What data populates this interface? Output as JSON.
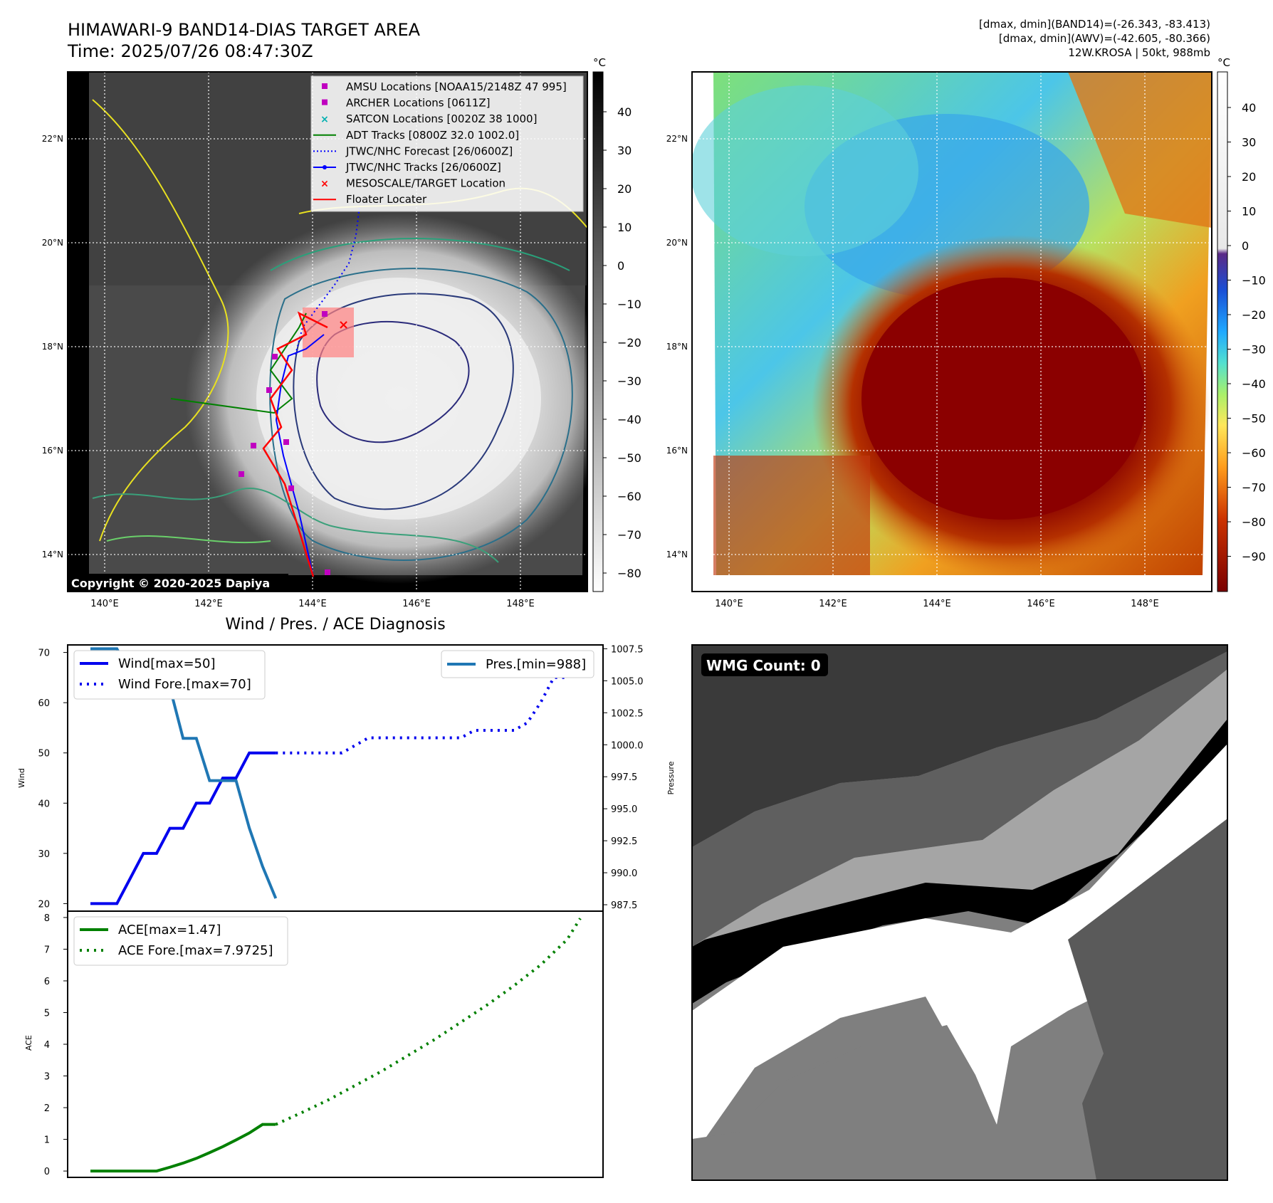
{
  "header": {
    "title": "HIMAWARI-9 BAND14-DIAS TARGET AREA",
    "time": "Time: 2025/07/26 08:47:30Z",
    "stats_band14": "[dmax, dmin](BAND14)=(-26.343, -83.413)",
    "stats_awv": "[dmax, dmin](AWV)=(-42.605, -80.366)",
    "storm_info": "12W.KROSA | 50kt, 988mb"
  },
  "map_left": {
    "lon_labels": [
      "140°E",
      "142°E",
      "144°E",
      "146°E",
      "148°E"
    ],
    "lat_labels": [
      "22°N",
      "20°N",
      "18°N",
      "16°N",
      "14°N"
    ],
    "colorbar_unit": "°C",
    "colorbar_ticks": [
      "40",
      "30",
      "20",
      "10",
      "0",
      "−10",
      "−20",
      "−30",
      "−40",
      "−50",
      "−60",
      "−70",
      "−80"
    ],
    "copyright": "Copyright © 2020-2025 Dapiya",
    "legend": [
      {
        "label": "AMSU Locations [NOAA15/2148Z 47 995]",
        "marker": "square",
        "color": "#c000c0"
      },
      {
        "label": "ARCHER Locations [0611Z]",
        "marker": "square",
        "color": "#c000c0"
      },
      {
        "label": "SATCON Locations [0020Z 38 1000]",
        "marker": "x",
        "color": "#00b0b0"
      },
      {
        "label": "ADT Tracks [0800Z 32.0 1002.0]",
        "marker": "line",
        "color": "#008000"
      },
      {
        "label": "JTWC/NHC Forecast [26/0600Z]",
        "marker": "dotted",
        "color": "#0000ff"
      },
      {
        "label": "JTWC/NHC Tracks [26/0600Z]",
        "marker": "line-dot",
        "color": "#0000ff"
      },
      {
        "label": "MESOSCALE/TARGET Location",
        "marker": "x",
        "color": "#ff0000"
      },
      {
        "label": "Floater Locater",
        "marker": "line",
        "color": "#ff0000"
      }
    ]
  },
  "map_right": {
    "lon_labels": [
      "140°E",
      "142°E",
      "144°E",
      "146°E",
      "148°E"
    ],
    "lat_labels": [
      "22°N",
      "20°N",
      "18°N",
      "16°N",
      "14°N"
    ],
    "colorbar_unit": "°C",
    "colorbar_ticks": [
      "40",
      "30",
      "20",
      "10",
      "0",
      "−10",
      "−20",
      "−30",
      "−40",
      "−50",
      "−60",
      "−70",
      "−80",
      "−90"
    ]
  },
  "wmg": {
    "label": "WMG Count: 0"
  },
  "colors": {
    "wind": "#0000ee",
    "pressure": "#1f77b4",
    "ace": "#008000"
  },
  "chart_data": [
    {
      "type": "line",
      "title": "Wind / Pres. / ACE Diagnosis",
      "ylabel": "Wind",
      "ylabel_right": "Pressure",
      "ylim": [
        18.5,
        71.5
      ],
      "ylim_right": [
        987.0,
        1007.8
      ],
      "yticks": [
        20,
        30,
        40,
        50,
        60,
        70
      ],
      "yticks_right": [
        "987.5",
        "990.0",
        "992.5",
        "995.0",
        "997.5",
        "1000.0",
        "1002.5",
        "1005.0",
        "1007.5"
      ],
      "x": [
        0,
        1,
        2,
        3,
        4,
        5,
        6,
        7,
        8,
        9,
        10,
        11,
        12,
        13,
        14,
        15,
        16,
        17,
        18,
        19,
        20,
        21,
        22,
        23,
        24,
        25,
        26,
        27,
        28,
        29,
        30,
        31,
        32,
        33,
        34,
        35,
        36,
        37
      ],
      "series": [
        {
          "name": "Wind[max=50]",
          "style": "solid",
          "x": [
            0,
            1,
            2,
            3,
            4,
            5,
            6,
            7,
            8,
            9,
            10,
            11,
            12,
            13,
            14
          ],
          "values": [
            20,
            20,
            20,
            25,
            30,
            30,
            35,
            35,
            40,
            40,
            45,
            45,
            50,
            50,
            50
          ]
        },
        {
          "name": "Wind Fore.[max=70]",
          "style": "dotted",
          "x": [
            14,
            15,
            16,
            17,
            18,
            19,
            20,
            21,
            22,
            23,
            24,
            25,
            26,
            27,
            28,
            29,
            30,
            31,
            32,
            33,
            34,
            35,
            36,
            37
          ],
          "values": [
            50,
            50,
            50,
            50,
            50,
            50,
            51.5,
            53,
            53,
            53,
            53,
            53,
            53,
            53,
            53,
            54.5,
            54.5,
            54.5,
            54.5,
            56,
            60,
            65,
            65,
            67
          ]
        },
        {
          "name": "Pres.[min=988]",
          "style": "solid",
          "axis": "right",
          "x": [
            0,
            1,
            2,
            3,
            4,
            5,
            6,
            7,
            8,
            9,
            10,
            11,
            12,
            13,
            14
          ],
          "values": [
            1007.5,
            1007.5,
            1007.5,
            1005.5,
            1005.5,
            1004.5,
            1004.5,
            1000.5,
            1000.5,
            997.2,
            997.2,
            997.2,
            993.5,
            990.5,
            988.0
          ]
        }
      ]
    },
    {
      "type": "line",
      "ylabel": "ACE",
      "ylim": [
        -0.2,
        8.2
      ],
      "yticks": [
        0,
        1,
        2,
        3,
        4,
        5,
        6,
        7,
        8
      ],
      "series": [
        {
          "name": "ACE[max=1.47]",
          "style": "solid",
          "x": [
            0,
            1,
            2,
            3,
            4,
            5,
            6,
            7,
            8,
            9,
            10,
            11,
            12,
            13,
            14
          ],
          "values": [
            0,
            0,
            0,
            0,
            0,
            0,
            0.12,
            0.25,
            0.4,
            0.58,
            0.77,
            0.98,
            1.2,
            1.47,
            1.47
          ]
        },
        {
          "name": "ACE Fore.[max=7.9725]",
          "style": "dotted",
          "x": [
            14,
            16,
            18,
            20,
            22,
            24,
            26,
            28,
            30,
            32,
            34,
            36,
            37
          ],
          "values": [
            1.47,
            1.85,
            2.25,
            2.7,
            3.15,
            3.65,
            4.15,
            4.7,
            5.25,
            5.85,
            6.5,
            7.3,
            7.97
          ]
        }
      ]
    }
  ]
}
